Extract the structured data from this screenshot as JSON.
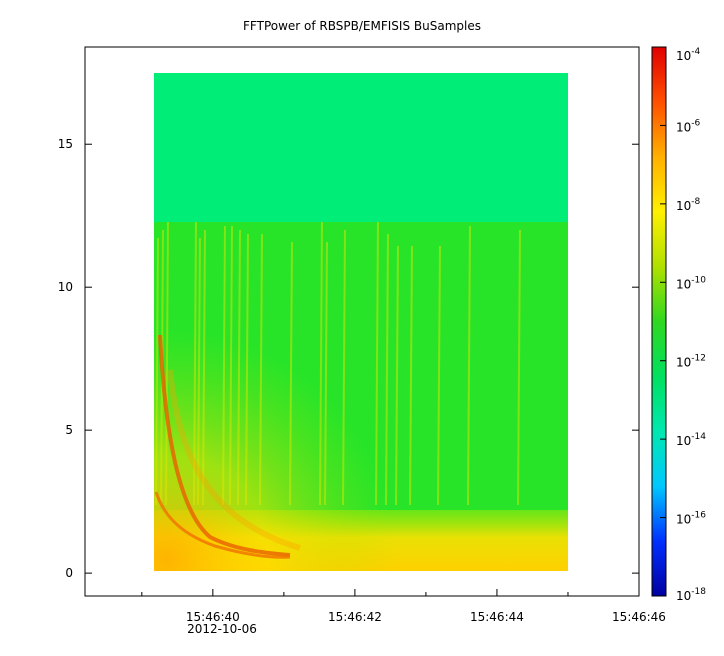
{
  "chart_data": {
    "type": "heatmap",
    "title": "FFTPower of RBSPB/EMFISIS  BuSamples",
    "xlabel": "",
    "ylabel": "",
    "x_tick_labels": [
      "15:46:40",
      "15:46:42",
      "15:46:44",
      "15:46:46"
    ],
    "x_date_label": "2012-10-06",
    "xlim": [
      "15:46:38.2",
      "15:46:46.0"
    ],
    "y_ticks": [
      0,
      5,
      10,
      15
    ],
    "ylim": [
      -0.8,
      18.4
    ],
    "data_extent": {
      "x": [
        "15:46:39.1",
        "15:46:45.1"
      ],
      "y": [
        0,
        17.5
      ]
    },
    "colorbar": {
      "scale": "log",
      "range": [
        1e-18,
        0.0001
      ],
      "tick_labels": [
        "10-4",
        "10-6",
        "10-8",
        "10-10",
        "10-12",
        "10-14",
        "10-16",
        "10-18"
      ],
      "exponents": [
        -4,
        -6,
        -8,
        -10,
        -12,
        -14,
        -16,
        -18
      ],
      "colormap": [
        "#0000a0",
        "#0030ff",
        "#00c8ff",
        "#00e8b0",
        "#00e060",
        "#30d820",
        "#b0e000",
        "#fff000",
        "#ffb000",
        "#ff5000",
        "#e00000"
      ]
    },
    "background_levels": {
      "above_12_2": 1e-12,
      "below_12_2": 1e-10,
      "near_0": 1e-08
    },
    "features": [
      {
        "type": "dispersive-whistler",
        "peak_power": 1e-06
      },
      {
        "type": "vertical-striations",
        "peak_power": 1e-08
      }
    ]
  }
}
